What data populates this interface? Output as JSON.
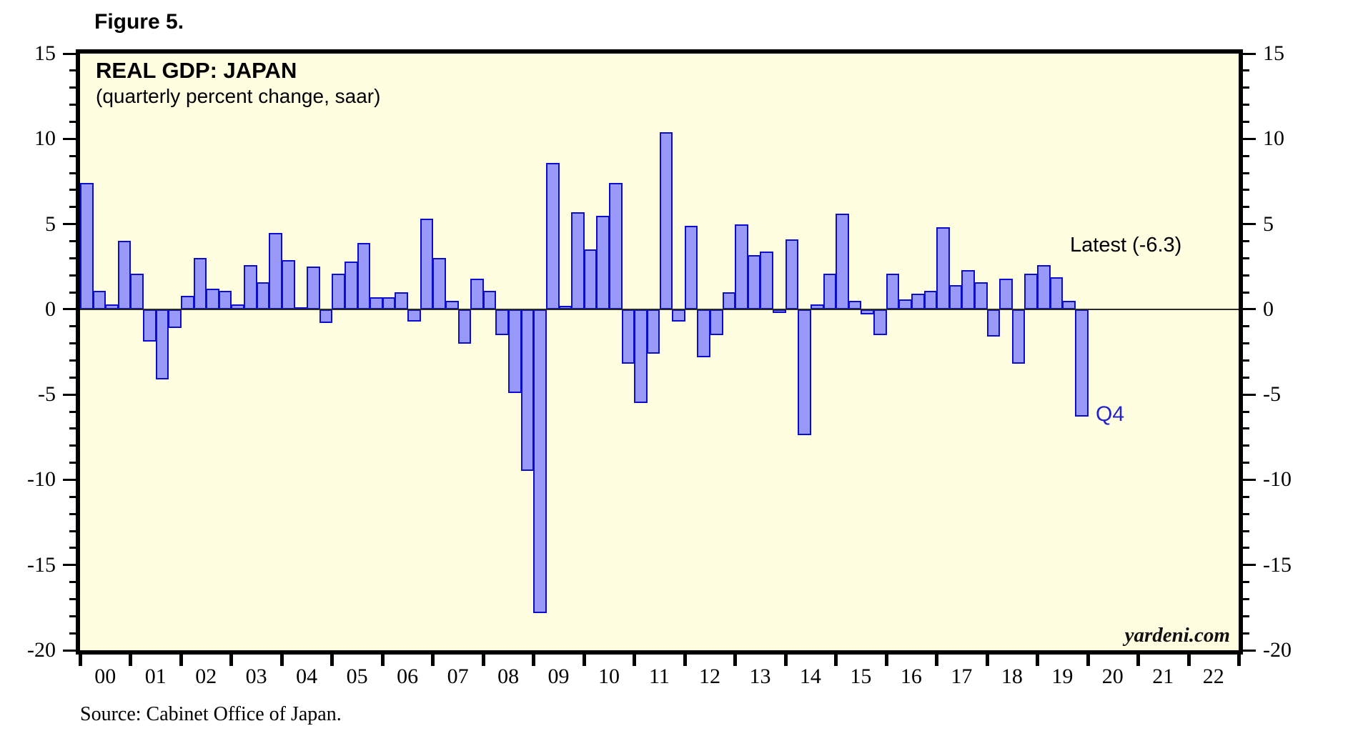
{
  "figure_label": "Figure 5.",
  "source_note": "Source: Cabinet Office of Japan.",
  "watermark": "yardeni.com",
  "annotations": {
    "latest_label": "Latest (-6.3)",
    "latest_point_label": "Q4"
  },
  "colors": {
    "plot_background": "#fffee0",
    "bar_fill": "#9999fa",
    "bar_border": "#0d0dcc",
    "axis": "#000000",
    "annotation_blue": "#2323cc"
  },
  "chart_data": {
    "type": "bar",
    "title": "REAL GDP: JAPAN",
    "subtitle": "(quarterly percent change, saar)",
    "ylabel": "percent change, saar",
    "ylim": [
      -20,
      15
    ],
    "y_ticks": [
      15,
      10,
      5,
      0,
      -5,
      -10,
      -15,
      -20
    ],
    "y_minor_tick_step": 1,
    "grid": "none",
    "zero_line": true,
    "x_year_labels": [
      "00",
      "01",
      "02",
      "03",
      "04",
      "05",
      "06",
      "07",
      "08",
      "09",
      "10",
      "11",
      "12",
      "13",
      "14",
      "15",
      "16",
      "17",
      "18",
      "19",
      "20",
      "21",
      "22"
    ],
    "x_axis_span_years": 23,
    "series_start": "2000Q1",
    "series_end": "2019Q4",
    "by_year": [
      {
        "year": "2000",
        "q": [
          7.4,
          1.1,
          0.3,
          4.0
        ]
      },
      {
        "year": "2001",
        "q": [
          2.1,
          -1.9,
          -4.1,
          -1.1
        ]
      },
      {
        "year": "2002",
        "q": [
          0.8,
          3.0,
          1.2,
          1.1
        ]
      },
      {
        "year": "2003",
        "q": [
          0.3,
          2.6,
          1.6,
          4.5
        ]
      },
      {
        "year": "2004",
        "q": [
          2.9,
          0.1,
          2.5,
          -0.8
        ]
      },
      {
        "year": "2005",
        "q": [
          2.1,
          2.8,
          3.9,
          0.7
        ]
      },
      {
        "year": "2006",
        "q": [
          0.7,
          1.0,
          -0.7,
          5.3
        ]
      },
      {
        "year": "2007",
        "q": [
          3.0,
          0.5,
          -2.0,
          1.8
        ]
      },
      {
        "year": "2008",
        "q": [
          1.1,
          -1.5,
          -4.9,
          -9.5
        ]
      },
      {
        "year": "2009",
        "q": [
          -17.8,
          8.6,
          0.2,
          5.7
        ]
      },
      {
        "year": "2010",
        "q": [
          3.5,
          5.5,
          7.4,
          -3.2
        ]
      },
      {
        "year": "2011",
        "q": [
          -5.5,
          -2.6,
          10.4,
          -0.7
        ]
      },
      {
        "year": "2012",
        "q": [
          4.9,
          -2.8,
          -1.5,
          1.0
        ]
      },
      {
        "year": "2013",
        "q": [
          5.0,
          3.2,
          3.4,
          -0.2
        ]
      },
      {
        "year": "2014",
        "q": [
          4.1,
          -7.4,
          0.3,
          2.1
        ]
      },
      {
        "year": "2015",
        "q": [
          5.6,
          0.5,
          -0.3,
          -1.5
        ]
      },
      {
        "year": "2016",
        "q": [
          2.1,
          0.6,
          0.9,
          1.1
        ]
      },
      {
        "year": "2017",
        "q": [
          4.8,
          1.4,
          2.3,
          1.6
        ]
      },
      {
        "year": "2018",
        "q": [
          -1.6,
          1.8,
          -3.2,
          2.1
        ]
      },
      {
        "year": "2019",
        "q": [
          2.6,
          1.9,
          0.5,
          -6.3
        ]
      }
    ]
  }
}
